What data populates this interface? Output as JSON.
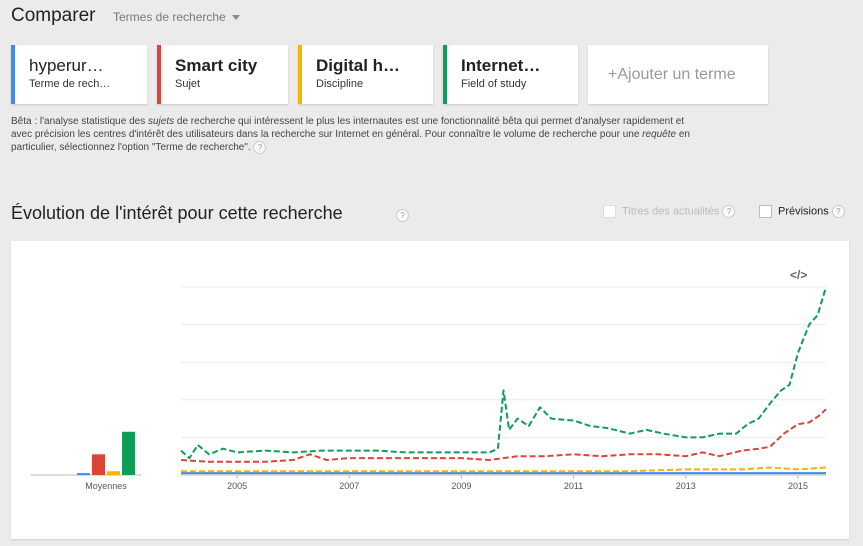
{
  "header": {
    "title": "Comparer",
    "dropdown_label": "Termes de recherche"
  },
  "terms": [
    {
      "name": "hyperur…",
      "subtitle": "Terme de rech…",
      "color": "#4285f4"
    },
    {
      "name": "Smart city",
      "subtitle": "Sujet",
      "color": "#db4437"
    },
    {
      "name": "Digital h…",
      "subtitle": "Discipline",
      "color": "#f4b400"
    },
    {
      "name": "Internet…",
      "subtitle": "Field of study",
      "color": "#0f9d58"
    }
  ],
  "add_term": {
    "label": "+Ajouter un terme"
  },
  "beta": {
    "p1": "Bêta : l'analyse statistique des ",
    "i1": "sujets",
    "p2": " de recherche qui intéressent le plus les internautes est une fonctionnalité bêta qui permet d'analyser rapidement et avec précision les centres d'intérêt des utilisateurs dans la recherche sur Internet en général. Pour connaître le volume de recherche pour une ",
    "i2": "requête",
    "p3": " en particulier, sélectionnez l'option \"Terme de recherche\"."
  },
  "section": {
    "title": "Évolution de l'intérêt pour cette recherche",
    "opt_news": "Titres des actualités",
    "opt_forecast": "Prévisions",
    "help": "?"
  },
  "chart_data": {
    "type": "line",
    "averages_label": "Moyennes",
    "averages": [
      {
        "name": "hyperur…",
        "value": 1
      },
      {
        "name": "Smart city",
        "value": 11
      },
      {
        "name": "Digital h…",
        "value": 2
      },
      {
        "name": "Internet…",
        "value": 23
      }
    ],
    "x_tick_labels": [
      "2005",
      "2007",
      "2009",
      "2011",
      "2013",
      "2015"
    ],
    "x_start": 2004.0,
    "x_end": 2015.5,
    "ylim": [
      0,
      100
    ],
    "grid": true,
    "series": [
      {
        "name": "hyperur…",
        "color": "#4285f4",
        "points": [
          [
            2004.0,
            1
          ],
          [
            2015.5,
            1
          ]
        ]
      },
      {
        "name": "Smart city",
        "color": "#db4437",
        "points": [
          [
            2004.0,
            8
          ],
          [
            2004.5,
            7
          ],
          [
            2005.0,
            7
          ],
          [
            2005.5,
            7
          ],
          [
            2006.0,
            8
          ],
          [
            2006.3,
            11
          ],
          [
            2006.6,
            8
          ],
          [
            2007.0,
            9
          ],
          [
            2007.5,
            9
          ],
          [
            2008.0,
            9
          ],
          [
            2008.5,
            9
          ],
          [
            2009.0,
            9
          ],
          [
            2009.5,
            8
          ],
          [
            2009.75,
            9
          ],
          [
            2010.0,
            10
          ],
          [
            2010.5,
            10
          ],
          [
            2011.0,
            11
          ],
          [
            2011.5,
            10
          ],
          [
            2012.0,
            11
          ],
          [
            2012.5,
            11
          ],
          [
            2013.0,
            10
          ],
          [
            2013.3,
            12
          ],
          [
            2013.6,
            10
          ],
          [
            2014.0,
            13
          ],
          [
            2014.3,
            14
          ],
          [
            2014.5,
            15
          ],
          [
            2014.75,
            22
          ],
          [
            2015.0,
            27
          ],
          [
            2015.2,
            28
          ],
          [
            2015.4,
            32
          ],
          [
            2015.5,
            35
          ]
        ]
      },
      {
        "name": "Digital h…",
        "color": "#f4b400",
        "points": [
          [
            2004.0,
            2
          ],
          [
            2005.0,
            2
          ],
          [
            2006.0,
            2
          ],
          [
            2007.0,
            2
          ],
          [
            2008.0,
            2
          ],
          [
            2009.0,
            2
          ],
          [
            2010.0,
            2
          ],
          [
            2011.0,
            2
          ],
          [
            2012.0,
            2
          ],
          [
            2013.0,
            3
          ],
          [
            2014.0,
            3
          ],
          [
            2014.5,
            4
          ],
          [
            2015.0,
            3
          ],
          [
            2015.5,
            4
          ]
        ]
      },
      {
        "name": "Internet…",
        "color": "#0f9d58",
        "points": [
          [
            2004.0,
            13
          ],
          [
            2004.15,
            9
          ],
          [
            2004.3,
            16
          ],
          [
            2004.5,
            11
          ],
          [
            2004.75,
            14
          ],
          [
            2005.0,
            12
          ],
          [
            2005.5,
            13
          ],
          [
            2006.0,
            12
          ],
          [
            2006.5,
            13
          ],
          [
            2007.0,
            13
          ],
          [
            2007.5,
            13
          ],
          [
            2008.0,
            12
          ],
          [
            2008.5,
            12
          ],
          [
            2009.0,
            12
          ],
          [
            2009.5,
            12
          ],
          [
            2009.65,
            14
          ],
          [
            2009.75,
            45
          ],
          [
            2009.85,
            24
          ],
          [
            2010.0,
            30
          ],
          [
            2010.2,
            26
          ],
          [
            2010.4,
            36
          ],
          [
            2010.6,
            30
          ],
          [
            2011.0,
            29
          ],
          [
            2011.3,
            26
          ],
          [
            2011.6,
            25
          ],
          [
            2012.0,
            22
          ],
          [
            2012.3,
            24
          ],
          [
            2012.6,
            22
          ],
          [
            2013.0,
            20
          ],
          [
            2013.3,
            20
          ],
          [
            2013.6,
            22
          ],
          [
            2013.9,
            22
          ],
          [
            2014.1,
            27
          ],
          [
            2014.3,
            30
          ],
          [
            2014.5,
            38
          ],
          [
            2014.7,
            45
          ],
          [
            2014.85,
            48
          ],
          [
            2015.0,
            65
          ],
          [
            2015.2,
            80
          ],
          [
            2015.35,
            85
          ],
          [
            2015.5,
            100
          ]
        ]
      }
    ]
  }
}
